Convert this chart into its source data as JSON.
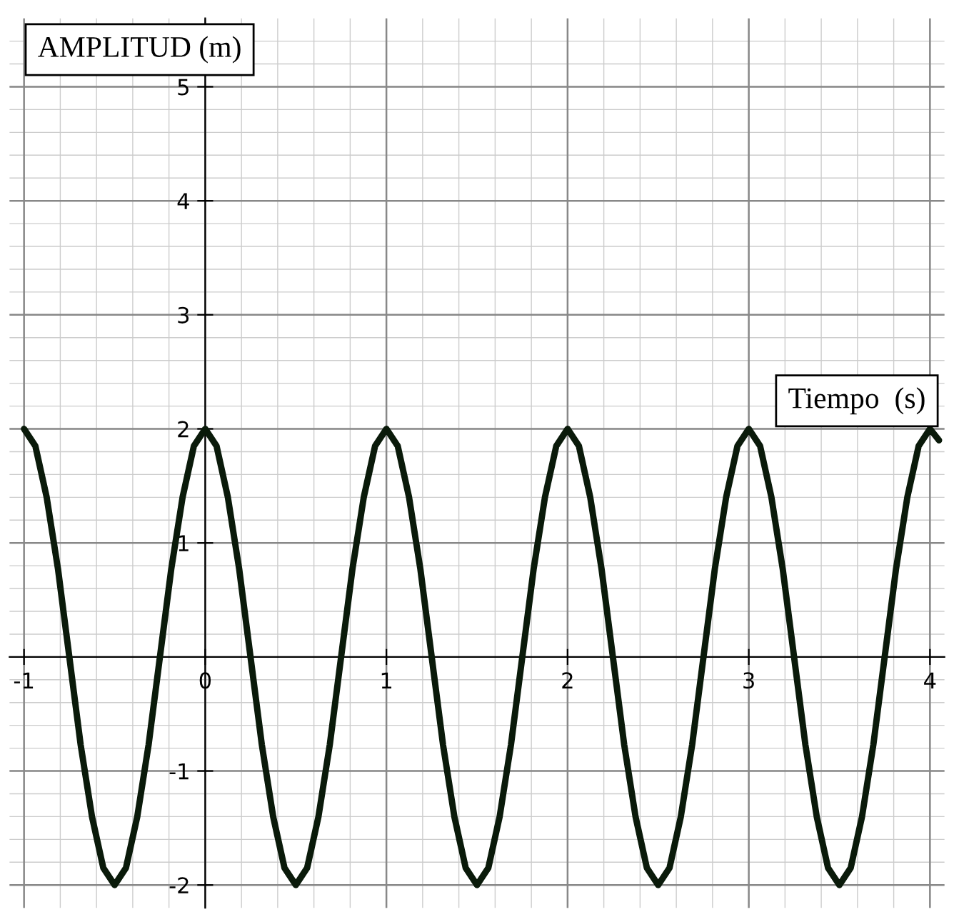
{
  "chart_data": {
    "type": "line",
    "xlabel": "Tiempo  (s)",
    "ylabel": "AMPLITUD (m)",
    "x": [
      -1,
      -0.9375,
      -0.875,
      -0.8125,
      -0.75,
      -0.6875,
      -0.625,
      -0.5625,
      -0.5,
      -0.4375,
      -0.375,
      -0.3125,
      -0.25,
      -0.1875,
      -0.125,
      -0.0625,
      0,
      0.0625,
      0.125,
      0.1875,
      0.25,
      0.3125,
      0.375,
      0.4375,
      0.5,
      0.5625,
      0.625,
      0.6875,
      0.75,
      0.8125,
      0.875,
      0.9375,
      1,
      1.0625,
      1.125,
      1.1875,
      1.25,
      1.3125,
      1.375,
      1.4375,
      1.5,
      1.5625,
      1.625,
      1.6875,
      1.75,
      1.8125,
      1.875,
      1.9375,
      2,
      2.0625,
      2.125,
      2.1875,
      2.25,
      2.3125,
      2.375,
      2.4375,
      2.5,
      2.5625,
      2.625,
      2.6875,
      2.75,
      2.8125,
      2.875,
      2.9375,
      3,
      3.0625,
      3.125,
      3.1875,
      3.25,
      3.3125,
      3.375,
      3.4375,
      3.5,
      3.5625,
      3.625,
      3.6875,
      3.75,
      3.8125,
      3.875,
      3.9375,
      4,
      4.05
    ],
    "series": [
      {
        "color": "#0a1a0a",
        "values": [
          2,
          1.85,
          1.4,
          0.77,
          0,
          -0.77,
          -1.4,
          -1.85,
          -2,
          -1.85,
          -1.4,
          -0.77,
          0,
          0.77,
          1.4,
          1.85,
          2,
          1.85,
          1.4,
          0.77,
          0,
          -0.77,
          -1.4,
          -1.85,
          -2,
          -1.85,
          -1.4,
          -0.77,
          0,
          0.77,
          1.4,
          1.85,
          2,
          1.85,
          1.4,
          0.77,
          0,
          -0.77,
          -1.4,
          -1.85,
          -2,
          -1.85,
          -1.4,
          -0.77,
          0,
          0.77,
          1.4,
          1.85,
          2,
          1.85,
          1.4,
          0.77,
          0,
          -0.77,
          -1.4,
          -1.85,
          -2,
          -1.85,
          -1.4,
          -0.77,
          0,
          0.77,
          1.4,
          1.85,
          2,
          1.85,
          1.4,
          0.77,
          0,
          -0.77,
          -1.4,
          -1.85,
          -2,
          -1.85,
          -1.4,
          -0.77,
          0,
          0.77,
          1.4,
          1.85,
          2,
          1.9
        ]
      }
    ],
    "xlim": [
      -1.08,
      4.08
    ],
    "ylim": [
      -2.2,
      5.6
    ],
    "xticks": [
      -1,
      0,
      1,
      2,
      3,
      4
    ],
    "yticks": [
      -2,
      -1,
      1,
      2,
      3,
      4,
      5
    ],
    "grid": true,
    "legend": false,
    "marker": "none",
    "line_style": "solid"
  }
}
